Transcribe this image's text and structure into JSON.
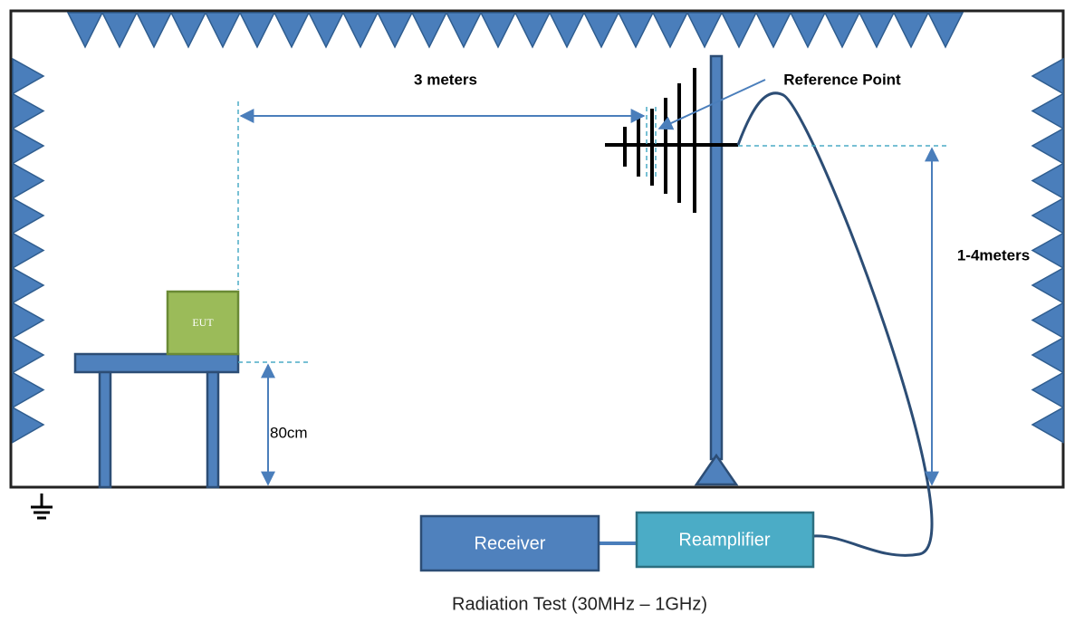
{
  "labels": {
    "distance": "3 meters",
    "reference": "Reference Point",
    "height": "1-4meters",
    "eut": "EUT",
    "table_height": "80cm",
    "receiver": "Receiver",
    "amplifier": "Reamplifier",
    "caption": "Radiation Test (30MHz – 1GHz)"
  }
}
